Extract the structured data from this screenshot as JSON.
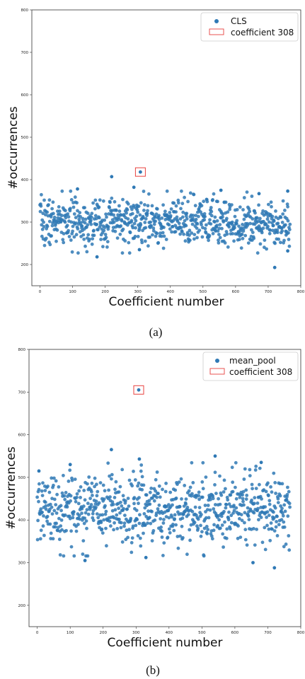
{
  "captions": [
    "(a)",
    "(b)"
  ],
  "colors": {
    "points": "#2f79b5",
    "highlight_box": "#e8413f",
    "axes": "#333333"
  },
  "chart_data": [
    {
      "type": "scatter",
      "panel": "(a)",
      "xlabel": "Coefficient number",
      "ylabel": "#occurrences",
      "xlim": [
        -25,
        800
      ],
      "ylim": [
        150,
        800
      ],
      "xticks": [
        0,
        100,
        200,
        300,
        400,
        500,
        600,
        700,
        800
      ],
      "yticks": [
        200,
        300,
        400,
        500,
        600,
        700,
        800
      ],
      "legend": {
        "placement": "top-right",
        "entries": [
          "CLS",
          "coefficient 308"
        ]
      },
      "series": [
        {
          "name": "CLS",
          "count": 768,
          "center": 300,
          "spread": 28,
          "min": 193,
          "max": 418,
          "seed": 7
        }
      ],
      "outliers": [
        {
          "x": 308,
          "y": 418
        },
        {
          "x": 220,
          "y": 407
        },
        {
          "x": 720,
          "y": 193
        },
        {
          "x": 175,
          "y": 218
        },
        {
          "x": 115,
          "y": 378
        },
        {
          "x": 760,
          "y": 373
        },
        {
          "x": 555,
          "y": 375
        },
        {
          "x": 305,
          "y": 235
        },
        {
          "x": 760,
          "y": 232
        },
        {
          "x": 672,
          "y": 367
        },
        {
          "x": 288,
          "y": 382
        }
      ],
      "highlight": {
        "label": "coefficient 308",
        "x": 308,
        "y": 418
      }
    },
    {
      "type": "scatter",
      "panel": "(b)",
      "xlabel": "Coefficient number",
      "ylabel": "#occurrences",
      "xlim": [
        -25,
        800
      ],
      "ylim": [
        150,
        800
      ],
      "xticks": [
        0,
        100,
        200,
        300,
        400,
        500,
        600,
        700,
        800
      ],
      "yticks": [
        200,
        300,
        400,
        500,
        600,
        700,
        800
      ],
      "legend": {
        "placement": "top-right",
        "entries": [
          "mean_pool",
          "coefficient 308"
        ]
      },
      "series": [
        {
          "name": "mean_pool",
          "count": 768,
          "center": 425,
          "spread": 42,
          "min": 288,
          "max": 705,
          "seed": 21
        }
      ],
      "outliers": [
        {
          "x": 308,
          "y": 705
        },
        {
          "x": 225,
          "y": 565
        },
        {
          "x": 540,
          "y": 550
        },
        {
          "x": 310,
          "y": 543
        },
        {
          "x": 680,
          "y": 535
        },
        {
          "x": 145,
          "y": 305
        },
        {
          "x": 330,
          "y": 312
        },
        {
          "x": 655,
          "y": 300
        },
        {
          "x": 720,
          "y": 288
        },
        {
          "x": 5,
          "y": 515
        },
        {
          "x": 100,
          "y": 530
        }
      ],
      "highlight": {
        "label": "coefficient 308",
        "x": 308,
        "y": 705
      }
    }
  ]
}
